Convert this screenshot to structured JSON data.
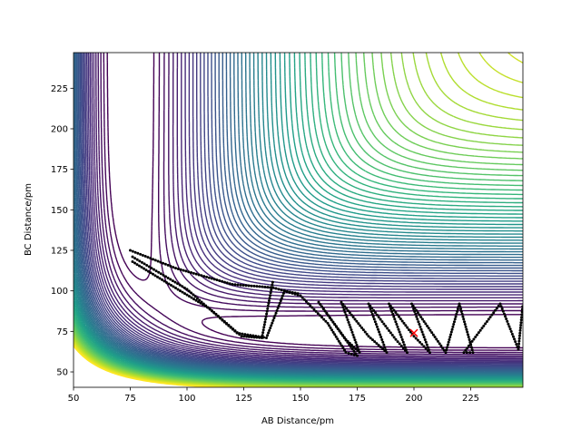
{
  "chart_data": {
    "type": "contour",
    "title": "",
    "xlabel": "AB Distance/pm",
    "ylabel": "BC Distance/pm",
    "xlim": [
      50,
      248
    ],
    "ylim": [
      40.5,
      247
    ],
    "xticks": [
      "50",
      "75",
      "100",
      "125",
      "150",
      "175",
      "200",
      "225"
    ],
    "xtick_values": [
      50,
      75,
      100,
      125,
      150,
      175,
      200,
      225
    ],
    "yticks": [
      "50",
      "75",
      "100",
      "125",
      "150",
      "175",
      "200",
      "225"
    ],
    "ytick_values": [
      50,
      75,
      100,
      125,
      150,
      175,
      200,
      225
    ],
    "colormap": "viridis",
    "contour_levels": {
      "min": -440,
      "max": -15,
      "count": 60
    },
    "surface": {
      "model": "LEPS",
      "D": 458.2,
      "a": 0.0194,
      "re": 74.1,
      "sato": 0.18
    },
    "marker": {
      "label": "x",
      "ab": 200,
      "bc": 74,
      "color": "#ff0000"
    },
    "trajectory_color": "#000000",
    "trajectory": [
      [
        [
          76,
          118
        ],
        [
          90,
          106
        ],
        [
          110,
          89
        ],
        [
          124,
          72
        ],
        [
          133,
          71
        ],
        [
          138,
          107
        ]
      ],
      [
        [
          76,
          121
        ],
        [
          100,
          101
        ],
        [
          122,
          74
        ],
        [
          135,
          71
        ],
        [
          143,
          100
        ],
        [
          150,
          98
        ]
      ],
      [
        [
          75,
          125
        ],
        [
          95,
          114
        ],
        [
          120,
          104
        ],
        [
          138,
          102
        ],
        [
          150,
          97
        ],
        [
          162,
          80
        ],
        [
          170,
          62
        ],
        [
          175,
          60
        ],
        [
          158,
          93
        ],
        [
          170,
          70
        ],
        [
          176,
          62
        ],
        [
          168,
          93
        ],
        [
          180,
          72
        ],
        [
          188,
          62
        ],
        [
          180,
          92
        ],
        [
          192,
          70
        ],
        [
          197,
          62
        ],
        [
          189,
          92
        ],
        [
          200,
          72
        ],
        [
          207,
          62
        ],
        [
          199,
          92
        ],
        [
          214,
          62
        ],
        [
          220,
          92
        ],
        [
          226,
          62
        ],
        [
          222,
          62
        ],
        [
          238,
          92
        ],
        [
          246,
          64
        ],
        [
          248,
          92
        ]
      ]
    ]
  }
}
